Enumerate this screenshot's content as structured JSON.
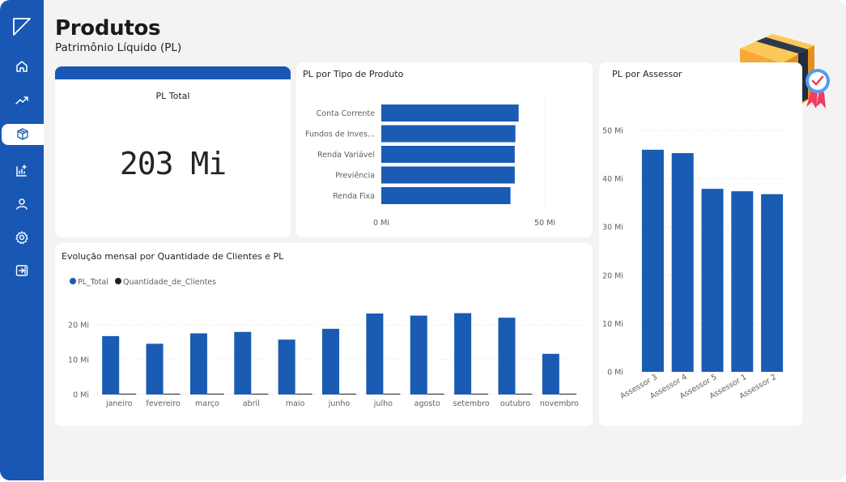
{
  "page": {
    "title": "Produtos",
    "subtitle": "Patrimônio Líquido (PL)"
  },
  "sidebar": {
    "items": [
      {
        "name": "home-icon"
      },
      {
        "name": "trend-icon"
      },
      {
        "name": "box-icon",
        "active": true
      },
      {
        "name": "report-icon"
      },
      {
        "name": "user-icon"
      },
      {
        "name": "gear-icon"
      },
      {
        "name": "logout-icon"
      }
    ]
  },
  "kpi": {
    "label": "PL Total",
    "value": "203 Mi"
  },
  "colors": {
    "accent": "#1857b4",
    "bar": "#1a5bb4",
    "secondary": "#222222"
  },
  "chart_data": [
    {
      "id": "pl_tipo",
      "type": "bar",
      "orientation": "horizontal",
      "title": "PL por Tipo de Produto",
      "categories": [
        "Conta Corrente",
        "Fundos de Inves...",
        "Renda Variável",
        "Previência",
        "Renda Fixa"
      ],
      "values": [
        42,
        41,
        40.8,
        40.8,
        39.5
      ],
      "xlim": [
        0,
        50
      ],
      "xticks": [
        {
          "v": 0,
          "label": "0 Mi"
        },
        {
          "v": 50,
          "label": "50 Mi"
        }
      ]
    },
    {
      "id": "pl_assessor",
      "type": "bar",
      "title": "PL por Assessor",
      "categories": [
        "Assessor 3",
        "Assessor 4",
        "Assessor 5",
        "Assessor 1",
        "Assessor 2"
      ],
      "values": [
        46,
        45.3,
        37.9,
        37.4,
        36.8
      ],
      "ylim": [
        0,
        50
      ],
      "yticks": [
        {
          "v": 0,
          "label": "0 Mi"
        },
        {
          "v": 10,
          "label": "10 Mi"
        },
        {
          "v": 20,
          "label": "20 Mi"
        },
        {
          "v": 30,
          "label": "30 Mi"
        },
        {
          "v": 40,
          "label": "40 Mi"
        },
        {
          "v": 50,
          "label": "50 Mi"
        }
      ]
    },
    {
      "id": "evolucao",
      "type": "bar",
      "title": "Evolução mensal por Quantidade de Clientes e PL",
      "categories": [
        "janeiro",
        "fevereiro",
        "março",
        "abril",
        "maio",
        "junho",
        "julho",
        "agosto",
        "setembro",
        "outubro",
        "novembro"
      ],
      "series": [
        {
          "name": "PL_Total",
          "color": "#1a5bb4",
          "values": [
            16.8,
            14.6,
            17.6,
            18,
            15.8,
            18.9,
            23.3,
            22.7,
            23.4,
            22.1,
            11.7
          ]
        },
        {
          "name": "Quantidade_de_Clientes",
          "color": "#222222",
          "values": [
            0.05,
            0.05,
            0.05,
            0.05,
            0.05,
            0.05,
            0.05,
            0.05,
            0.05,
            0.05,
            0.05
          ]
        }
      ],
      "ylim": [
        0,
        24
      ],
      "yticks": [
        {
          "v": 0,
          "label": "0 Mi"
        },
        {
          "v": 10,
          "label": "10 Mi"
        },
        {
          "v": 20,
          "label": "20 Mi"
        }
      ],
      "legend": "top-left"
    }
  ]
}
